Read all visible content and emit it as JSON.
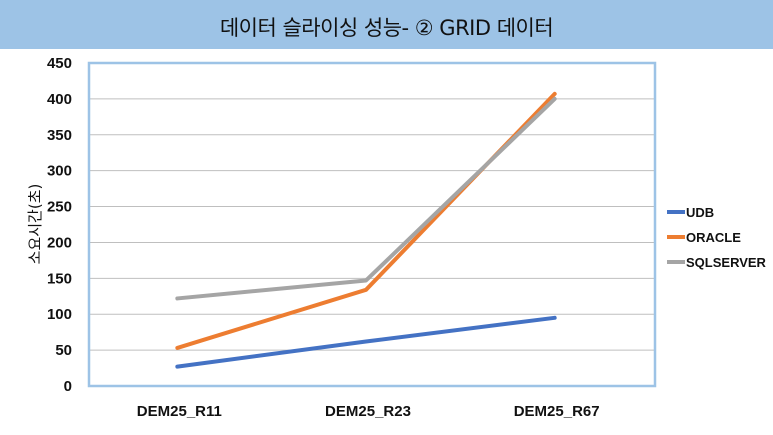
{
  "title": "데이터 슬라이싱 성능- ② GRID 데이터",
  "colors": {
    "title_bg": "#9dc3e6",
    "plot_border": "#9dc3e6",
    "grid": "#bfbfbf",
    "UDB": "#4472c4",
    "ORACLE": "#ed7d31",
    "SQLSERVER": "#a5a5a5"
  },
  "chart_data": {
    "type": "line",
    "title": "데이터 슬라이싱 성능- ② GRID 데이터",
    "xlabel": "",
    "ylabel": "소요시간(초)",
    "categories": [
      "DEM25_R11",
      "DEM25_R23",
      "DEM25_R67"
    ],
    "series": [
      {
        "name": "UDB",
        "values": [
          27,
          62,
          95
        ]
      },
      {
        "name": "ORACLE",
        "values": [
          53,
          134,
          407
        ]
      },
      {
        "name": "SQLSERVER",
        "values": [
          122,
          147,
          400
        ]
      }
    ],
    "ylim": [
      0,
      450
    ],
    "yticks": [
      0,
      50,
      100,
      150,
      200,
      250,
      300,
      350,
      400,
      450
    ],
    "grid": true,
    "legend_position": "right"
  }
}
